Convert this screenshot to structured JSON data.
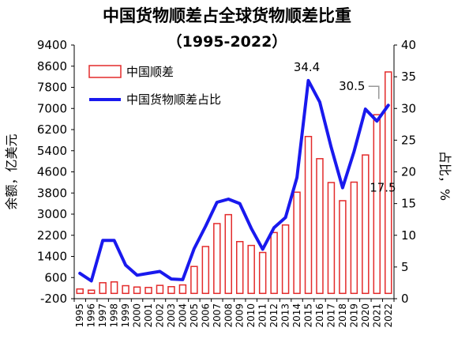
{
  "chart_data": {
    "type": "bar+line",
    "title": "中国货物顺差占全球货物顺差比重",
    "subtitle": "（1995-2022）",
    "categories": [
      "1995",
      "1996",
      "1997",
      "1998",
      "1999",
      "2000",
      "2001",
      "2002",
      "2003",
      "2004",
      "2005",
      "2006",
      "2007",
      "2008",
      "2009",
      "2010",
      "2011",
      "2012",
      "2013",
      "2014",
      "2015",
      "2016",
      "2017",
      "2018",
      "2019",
      "2020",
      "2021",
      "2022"
    ],
    "series": [
      {
        "name": "中国顺差",
        "type": "bar",
        "axis": "left",
        "color": "#e32b2b",
        "values": [
          167,
          122,
          404,
          435,
          292,
          241,
          225,
          304,
          255,
          321,
          1020,
          1775,
          2643,
          2981,
          1961,
          1815,
          1549,
          2303,
          2590,
          3831,
          5939,
          5099,
          4196,
          3509,
          4211,
          5240,
          6764,
          8382
        ]
      },
      {
        "name": "中国货物顺差占比",
        "type": "line",
        "axis": "right",
        "color": "#1919ee",
        "values": [
          4.0,
          2.8,
          9.2,
          9.2,
          5.3,
          3.7,
          4.0,
          4.3,
          3.1,
          3.0,
          7.9,
          11.4,
          15.2,
          15.7,
          15.0,
          11.1,
          7.8,
          11.2,
          12.8,
          19.1,
          34.4,
          31.0,
          23.9,
          17.5,
          23.2,
          29.9,
          28.0,
          30.5
        ]
      }
    ],
    "y_left": {
      "label": "余额，亿美元",
      "ylim": [
        -200,
        9400
      ],
      "ticks": [
        "-200",
        "600",
        "1400",
        "2200",
        "3000",
        "3800",
        "4600",
        "5400",
        "6200",
        "7000",
        "7800",
        "8600",
        "9400"
      ]
    },
    "y_right": {
      "label": "占比，%",
      "ylim": [
        0,
        40
      ],
      "ticks": [
        "0",
        "5",
        "10",
        "15",
        "20",
        "25",
        "30",
        "35",
        "40"
      ]
    },
    "annotations": [
      "34.4",
      "17.5",
      "30.5"
    ],
    "legend_position": "top-left",
    "grid": false
  }
}
